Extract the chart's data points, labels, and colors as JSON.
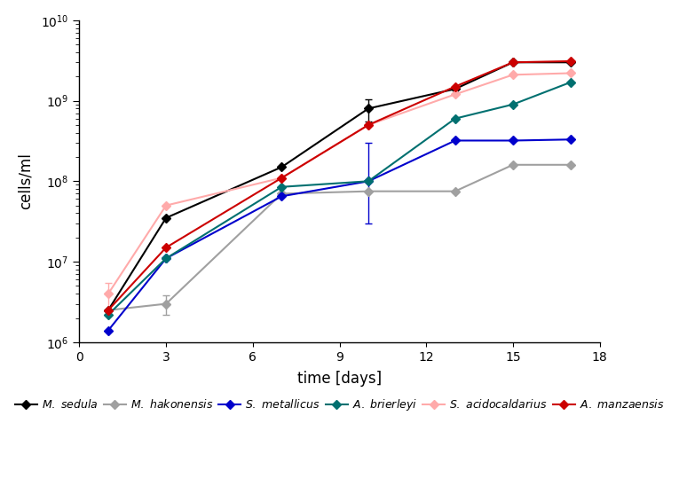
{
  "title": "",
  "xlabel": "time [days]",
  "ylabel": "cells/ml",
  "xlim": [
    0,
    18
  ],
  "ylim_log": [
    1000000.0,
    10000000000.0
  ],
  "series": {
    "M. sedula": {
      "color": "#000000",
      "marker": "D",
      "markersize": 5,
      "x": [
        1,
        3,
        7,
        10,
        13,
        15,
        17
      ],
      "y": [
        2500000.0,
        35000000.0,
        150000000.0,
        800000000.0,
        1400000000.0,
        3000000000.0,
        3000000000.0
      ],
      "yerr_lower": [
        null,
        null,
        null,
        250000000.0,
        null,
        null,
        null
      ],
      "yerr_upper": [
        null,
        null,
        null,
        250000000.0,
        null,
        null,
        null
      ]
    },
    "M. hakonensis": {
      "color": "#a0a0a0",
      "marker": "D",
      "markersize": 5,
      "x": [
        1,
        3,
        7,
        10,
        13,
        15,
        17
      ],
      "y": [
        2500000.0,
        3000000.0,
        70000000.0,
        75000000.0,
        75000000.0,
        160000000.0,
        160000000.0
      ],
      "yerr_lower": [
        null,
        800000.0,
        null,
        null,
        null,
        null,
        null
      ],
      "yerr_upper": [
        null,
        800000.0,
        null,
        null,
        null,
        null,
        null
      ]
    },
    "S. metallicus": {
      "color": "#0000cc",
      "marker": "D",
      "markersize": 5,
      "x": [
        1,
        3,
        7,
        10,
        13,
        15,
        17
      ],
      "y": [
        1400000.0,
        11000000.0,
        65000000.0,
        100000000.0,
        320000000.0,
        320000000.0,
        330000000.0
      ],
      "yerr_lower": [
        null,
        null,
        null,
        70000000.0,
        null,
        null,
        null
      ],
      "yerr_upper": [
        null,
        null,
        null,
        200000000.0,
        null,
        null,
        null
      ]
    },
    "A. brierleyi": {
      "color": "#007070",
      "marker": "D",
      "markersize": 5,
      "x": [
        1,
        3,
        7,
        10,
        13,
        15,
        17
      ],
      "y": [
        2200000.0,
        11000000.0,
        85000000.0,
        100000000.0,
        600000000.0,
        900000000.0,
        1700000000.0
      ],
      "yerr_lower": [
        null,
        null,
        null,
        null,
        null,
        null,
        null
      ],
      "yerr_upper": [
        null,
        null,
        null,
        null,
        null,
        null,
        null
      ]
    },
    "S. acidocaldarius": {
      "color": "#ffaaaa",
      "marker": "D",
      "markersize": 5,
      "x": [
        1,
        3,
        7,
        10,
        13,
        15,
        17
      ],
      "y": [
        4000000.0,
        50000000.0,
        110000000.0,
        500000000.0,
        1200000000.0,
        2100000000.0,
        2200000000.0
      ],
      "yerr_lower": [
        1500000.0,
        null,
        null,
        null,
        null,
        null,
        null
      ],
      "yerr_upper": [
        1500000.0,
        null,
        null,
        null,
        null,
        null,
        null
      ]
    },
    "A. manzaensis": {
      "color": "#cc0000",
      "marker": "D",
      "markersize": 5,
      "x": [
        1,
        3,
        7,
        10,
        13,
        15,
        17
      ],
      "y": [
        2500000.0,
        15000000.0,
        110000000.0,
        500000000.0,
        1500000000.0,
        3000000000.0,
        3100000000.0
      ],
      "yerr_lower": [
        null,
        null,
        null,
        null,
        null,
        null,
        null
      ],
      "yerr_upper": [
        null,
        null,
        null,
        null,
        null,
        null,
        null
      ]
    }
  },
  "xticks": [
    0,
    3,
    6,
    9,
    12,
    15,
    18
  ],
  "background_color": "#ffffff"
}
